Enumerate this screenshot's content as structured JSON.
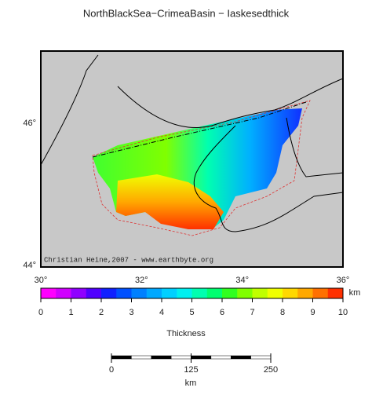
{
  "title": "NorthBlackSea−CrimeaBasin − Iaskesedthick",
  "credit": "Christian Heine,2007 - www.earthbyte.org",
  "latitude_labels": [
    "46°",
    "44°"
  ],
  "longitude_labels": [
    "30°",
    "32°",
    "34°",
    "36°"
  ],
  "colorbar": {
    "unit": "km",
    "label": "Thickness",
    "ticks": [
      0,
      1,
      2,
      3,
      4,
      5,
      6,
      7,
      8,
      9,
      10
    ],
    "colors": [
      "#ff00ff",
      "#d000ff",
      "#9000ff",
      "#5000ff",
      "#1020ff",
      "#0050ff",
      "#0080ff",
      "#00a8ff",
      "#00d0ff",
      "#00f0f0",
      "#00ffb0",
      "#00ff70",
      "#30ff20",
      "#80ff00",
      "#c0ff00",
      "#f0ff00",
      "#ffd800",
      "#ffa800",
      "#ff7000",
      "#ff3000"
    ]
  },
  "scale_bar": {
    "ticks": [
      0,
      125,
      250
    ],
    "unit": "km"
  }
}
